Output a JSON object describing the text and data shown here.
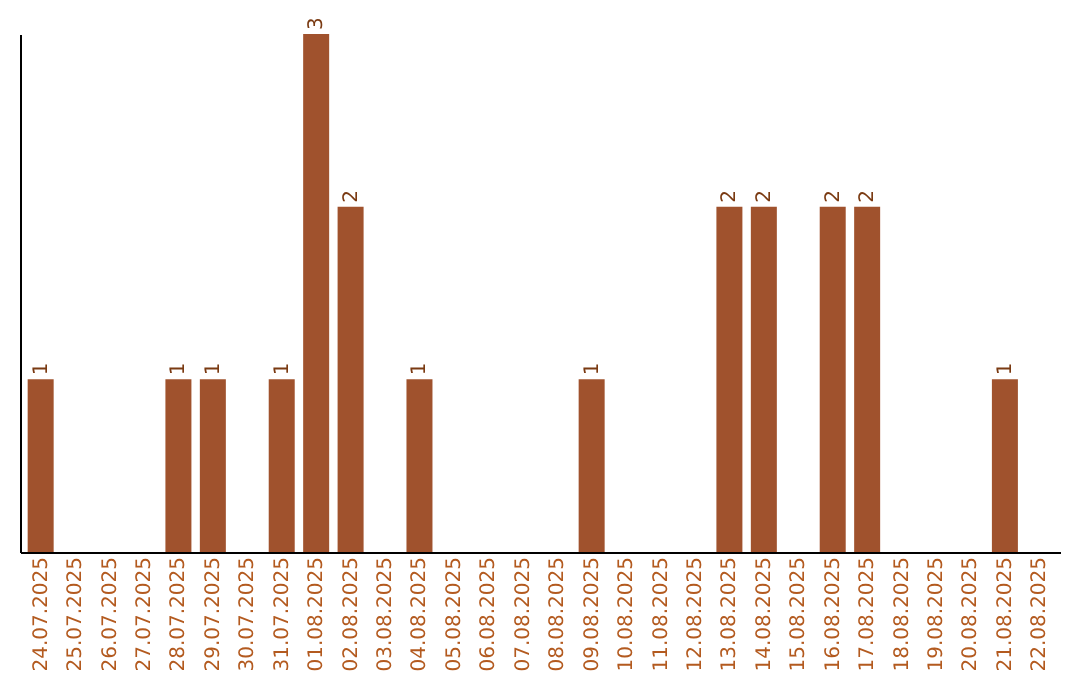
{
  "chart_data": {
    "type": "bar",
    "categories": [
      "24.07.2025",
      "25.07.2025",
      "26.07.2025",
      "27.07.2025",
      "28.07.2025",
      "29.07.2025",
      "30.07.2025",
      "31.07.2025",
      "01.08.2025",
      "02.08.2025",
      "03.08.2025",
      "04.08.2025",
      "05.08.2025",
      "06.08.2025",
      "07.08.2025",
      "08.08.2025",
      "09.08.2025",
      "10.08.2025",
      "11.08.2025",
      "12.08.2025",
      "13.08.2025",
      "14.08.2025",
      "15.08.2025",
      "16.08.2025",
      "17.08.2025",
      "18.08.2025",
      "19.08.2025",
      "20.08.2025",
      "21.08.2025",
      "22.08.2025"
    ],
    "values": [
      1,
      0,
      0,
      0,
      1,
      1,
      0,
      1,
      3,
      2,
      0,
      1,
      0,
      0,
      0,
      0,
      1,
      0,
      0,
      0,
      2,
      2,
      0,
      2,
      2,
      0,
      0,
      0,
      1,
      0
    ],
    "value_labels": [
      "1",
      null,
      null,
      null,
      "1",
      "1",
      null,
      "1",
      "3",
      "2",
      null,
      "1",
      null,
      null,
      null,
      null,
      "1",
      null,
      null,
      null,
      "2",
      "2",
      null,
      "2",
      "2",
      null,
      null,
      null,
      "1",
      null
    ],
    "color": "#a0522d",
    "tick_labels": "x",
    "grid": false
  }
}
